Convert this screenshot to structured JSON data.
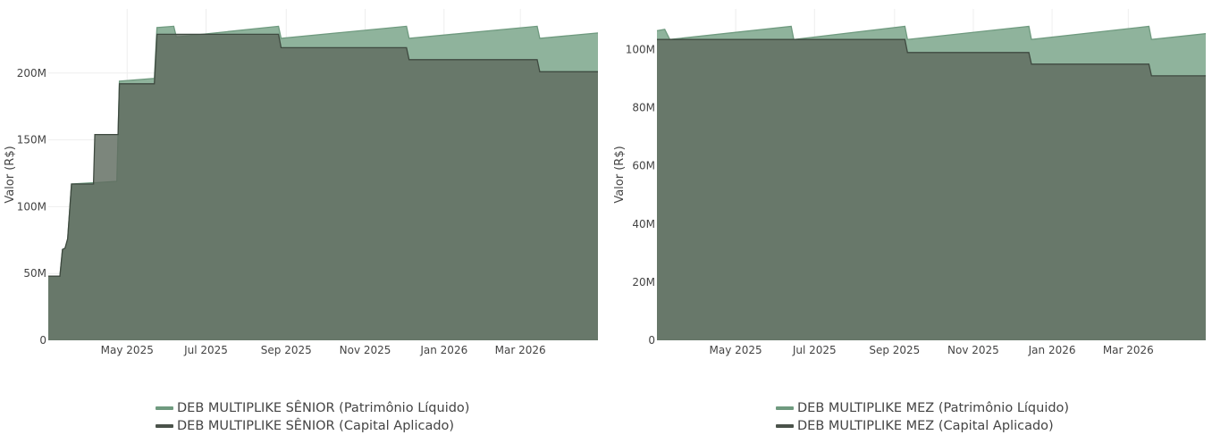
{
  "colors": {
    "pl_fill": "#8fb39c",
    "pl_line": "#6f9a7f",
    "ca_fill": "#5f6b5f",
    "ca_line": "#3f4a40",
    "grid": "#eeeeee"
  },
  "chart_data": [
    {
      "type": "area",
      "ylabel": "Valor (R$)",
      "xlim": [
        "2025-03-01",
        "2026-04-30"
      ],
      "ylim": [
        0,
        248
      ],
      "y_unit": "M",
      "y_ticks": [
        {
          "value": 0,
          "label": "0"
        },
        {
          "value": 50,
          "label": "50M"
        },
        {
          "value": 100,
          "label": "100M"
        },
        {
          "value": 150,
          "label": "150M"
        },
        {
          "value": 200,
          "label": "200M"
        }
      ],
      "x_ticks": [
        {
          "date": "2025-05-01",
          "label": "May 2025"
        },
        {
          "date": "2025-07-01",
          "label": "Jul 2025"
        },
        {
          "date": "2025-09-01",
          "label": "Sep 2025"
        },
        {
          "date": "2025-11-01",
          "label": "Nov 2025"
        },
        {
          "date": "2026-01-01",
          "label": "Jan 2026"
        },
        {
          "date": "2026-03-01",
          "label": "Mar 2026"
        }
      ],
      "legend": "bottom",
      "series": [
        {
          "name": "DEB MULTIPLIKE SÊNIOR (Patrimônio Líquido)",
          "points": [
            [
              "2025-03-01",
              48
            ],
            [
              "2025-03-10",
              48
            ],
            [
              "2025-03-12",
              68
            ],
            [
              "2025-03-14",
              69
            ],
            [
              "2025-03-16",
              76
            ],
            [
              "2025-03-19",
              117
            ],
            [
              "2025-04-05",
              118
            ],
            [
              "2025-04-07",
              118
            ],
            [
              "2025-04-23",
              119
            ],
            [
              "2025-04-25",
              194
            ],
            [
              "2025-05-22",
              196
            ],
            [
              "2025-05-24",
              234
            ],
            [
              "2025-06-06",
              235
            ],
            [
              "2025-06-08",
              227
            ],
            [
              "2025-08-26",
              235
            ],
            [
              "2025-08-28",
              226
            ],
            [
              "2025-12-03",
              235
            ],
            [
              "2025-12-05",
              226
            ],
            [
              "2026-03-14",
              235
            ],
            [
              "2026-03-16",
              226
            ],
            [
              "2026-04-30",
              230
            ]
          ]
        },
        {
          "name": "DEB MULTIPLIKE SÊNIOR (Capital Aplicado)",
          "points": [
            [
              "2025-03-01",
              48
            ],
            [
              "2025-03-10",
              48
            ],
            [
              "2025-03-12",
              68
            ],
            [
              "2025-03-14",
              69
            ],
            [
              "2025-03-16",
              76
            ],
            [
              "2025-03-19",
              117
            ],
            [
              "2025-04-05",
              117
            ],
            [
              "2025-04-06",
              154
            ],
            [
              "2025-04-24",
              154
            ],
            [
              "2025-04-25",
              192
            ],
            [
              "2025-05-22",
              192
            ],
            [
              "2025-05-24",
              229
            ],
            [
              "2025-08-26",
              229
            ],
            [
              "2025-08-28",
              219
            ],
            [
              "2025-12-03",
              219
            ],
            [
              "2025-12-05",
              210
            ],
            [
              "2026-03-14",
              210
            ],
            [
              "2026-03-16",
              201
            ],
            [
              "2026-04-30",
              201
            ]
          ]
        }
      ]
    },
    {
      "type": "area",
      "ylabel": "Valor (R$)",
      "xlim": [
        "2025-03-01",
        "2026-04-30"
      ],
      "ylim": [
        0,
        114
      ],
      "y_unit": "M",
      "y_ticks": [
        {
          "value": 0,
          "label": "0"
        },
        {
          "value": 20,
          "label": "20M"
        },
        {
          "value": 40,
          "label": "40M"
        },
        {
          "value": 60,
          "label": "60M"
        },
        {
          "value": 80,
          "label": "80M"
        },
        {
          "value": 100,
          "label": "100M"
        }
      ],
      "x_ticks": [
        {
          "date": "2025-05-01",
          "label": "May 2025"
        },
        {
          "date": "2025-07-01",
          "label": "Jul 2025"
        },
        {
          "date": "2025-09-01",
          "label": "Sep 2025"
        },
        {
          "date": "2025-11-01",
          "label": "Nov 2025"
        },
        {
          "date": "2026-01-01",
          "label": "Jan 2026"
        },
        {
          "date": "2026-03-01",
          "label": "Mar 2026"
        }
      ],
      "legend": "bottom",
      "series": [
        {
          "name": "DEB MULTIPLIKE MEZ (Patrimônio Líquido)",
          "points": [
            [
              "2025-03-01",
              106.5
            ],
            [
              "2025-03-07",
              107
            ],
            [
              "2025-03-11",
              103.5
            ],
            [
              "2025-06-13",
              108
            ],
            [
              "2025-06-15",
              103.5
            ],
            [
              "2025-09-09",
              108
            ],
            [
              "2025-09-11",
              103.5
            ],
            [
              "2025-12-14",
              108
            ],
            [
              "2025-12-16",
              103.5
            ],
            [
              "2026-03-17",
              108
            ],
            [
              "2026-03-19",
              103.5
            ],
            [
              "2026-04-30",
              105.5
            ]
          ]
        },
        {
          "name": "DEB MULTIPLIKE MEZ (Capital Aplicado)",
          "points": [
            [
              "2025-03-01",
              103.5
            ],
            [
              "2025-09-09",
              103.5
            ],
            [
              "2025-09-11",
              99
            ],
            [
              "2025-12-14",
              99
            ],
            [
              "2025-12-16",
              95
            ],
            [
              "2026-03-17",
              95
            ],
            [
              "2026-03-19",
              91
            ],
            [
              "2026-04-30",
              91
            ]
          ]
        }
      ]
    }
  ],
  "legends": [
    {
      "items": [
        {
          "label": "DEB MULTIPLIKE SÊNIOR (Patrimônio Líquido)",
          "color": "#6f9a7f"
        },
        {
          "label": "DEB MULTIPLIKE SÊNIOR (Capital Aplicado)",
          "color": "#4a524a"
        }
      ]
    },
    {
      "items": [
        {
          "label": "DEB MULTIPLIKE MEZ (Patrimônio Líquido)",
          "color": "#6f9a7f"
        },
        {
          "label": "DEB MULTIPLIKE MEZ (Capital Aplicado)",
          "color": "#4a524a"
        }
      ]
    }
  ]
}
